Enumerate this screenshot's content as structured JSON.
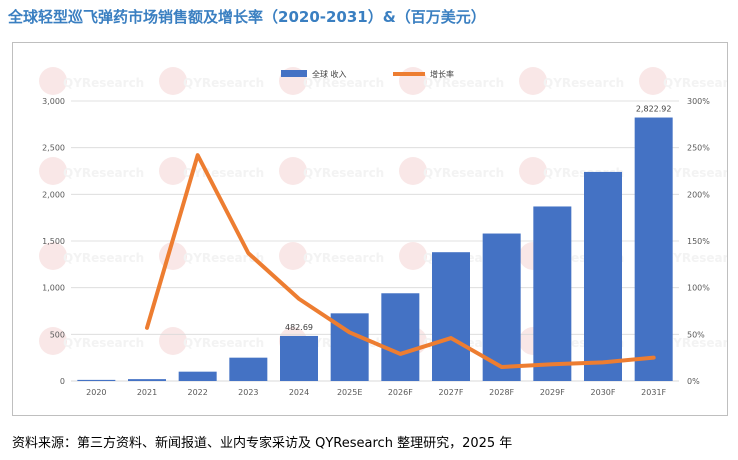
{
  "title": "全球轻型巡飞弹药市场销售额及增长率（2020-2031）&（百万美元）",
  "source_note": "资料来源：第三方资料、新闻报道、业内专家采访及 QYResearch 整理研究，2025 年",
  "watermark_text": "QYResearch",
  "colors": {
    "title": "#3a7fc1",
    "bar": "#4472c4",
    "line": "#ed7d31",
    "gridline": "#d9d9d9",
    "axis_text": "#595959"
  },
  "chart_data": {
    "type": "bar+line",
    "categories": [
      "2020",
      "2021",
      "2022",
      "2023",
      "2024",
      "2025E",
      "2026F",
      "2027F",
      "2028F",
      "2029F",
      "2030F",
      "2031F"
    ],
    "series": [
      {
        "name": "全球 收入",
        "type": "bar",
        "axis": "left",
        "values": [
          12,
          20,
          100,
          250,
          482.69,
          725,
          940,
          1380,
          1580,
          1870,
          2240,
          2822.92
        ]
      },
      {
        "name": "增长率",
        "type": "line",
        "axis": "right",
        "values": [
          null,
          57,
          242,
          137,
          88,
          52,
          29,
          46,
          15,
          18,
          20,
          25
        ]
      }
    ],
    "data_labels": [
      {
        "category_index": 4,
        "text": "482.69"
      },
      {
        "category_index": 11,
        "text": "2,822.92"
      }
    ],
    "y_left": {
      "min": 0,
      "max": 3000,
      "ticks": [
        "0",
        "500",
        "1,000",
        "1,500",
        "2,000",
        "2,500",
        "3,000"
      ]
    },
    "y_right": {
      "min": 0,
      "max": 300,
      "ticks": [
        "0%",
        "50%",
        "100%",
        "150%",
        "200%",
        "250%",
        "300%"
      ]
    },
    "grid": true,
    "legend_position": "top-center"
  }
}
